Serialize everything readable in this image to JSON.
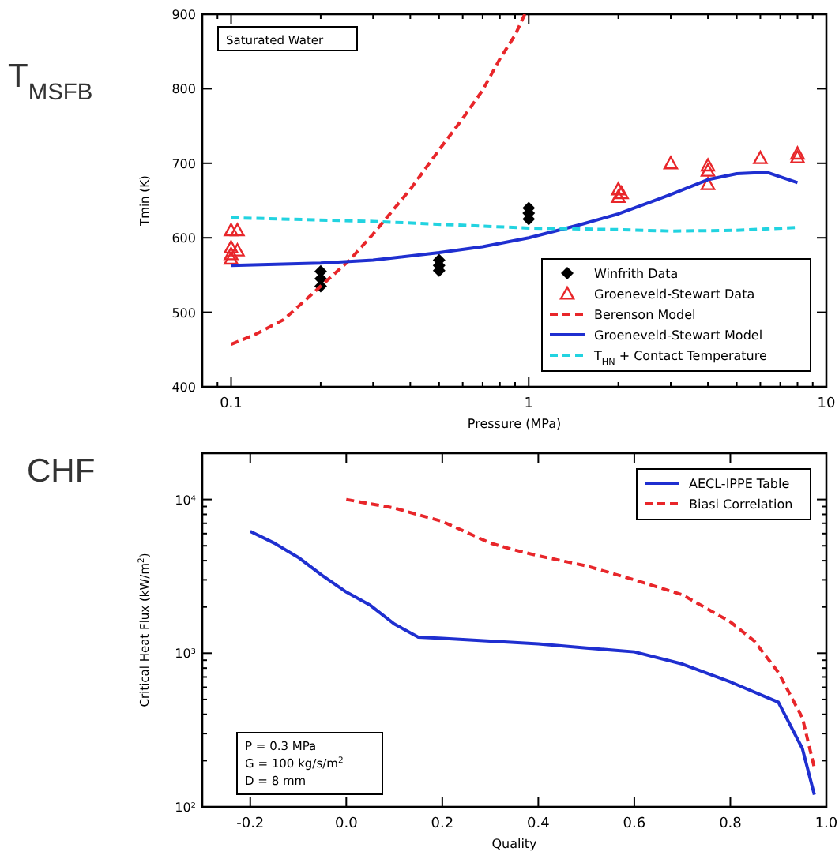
{
  "chart_data": [
    {
      "type": "line",
      "title": "T$_{MSFB}$",
      "xlabel": "Pressure (MPa)",
      "ylabel": "Tmin (K)",
      "log": "x",
      "legend": "bottom right",
      "grid": false,
      "xlim": [
        0.08,
        10
      ],
      "ylim": [
        400,
        900
      ],
      "xticks": [
        {
          "value": 0.08,
          "label": null
        },
        {
          "value": 0.09,
          "label": null
        },
        0.1,
        {
          "value": 0.2,
          "label": null
        },
        {
          "value": 0.3,
          "label": null
        },
        {
          "value": 0.4,
          "label": null
        },
        {
          "value": 0.5,
          "label": null
        },
        {
          "value": 0.6,
          "label": null
        },
        {
          "value": 0.7,
          "label": null
        },
        {
          "value": 0.8,
          "label": null
        },
        {
          "value": 0.9,
          "label": null
        },
        1,
        {
          "value": 2,
          "label": null
        },
        {
          "value": 3,
          "label": null
        },
        {
          "value": 4,
          "label": null
        },
        {
          "value": 5,
          "label": null
        },
        {
          "value": 6,
          "label": null
        },
        {
          "value": 7,
          "label": null
        },
        {
          "value": 8,
          "label": null
        },
        {
          "value": 9,
          "label": null
        },
        10
      ],
      "yticks": [
        400,
        500,
        600,
        700,
        800,
        900
      ],
      "annotations": [
        "Saturated Water"
      ],
      "series": [
        {
          "name": "Winfrith Data",
          "type": "scatter",
          "marker": "diamond",
          "color": "#000000",
          "x": [
            0.2,
            0.2,
            0.2,
            0.5,
            0.5,
            0.5,
            1,
            1,
            1
          ],
          "values": [
            555,
            545,
            535,
            570,
            563,
            556,
            640,
            633,
            625
          ]
        },
        {
          "name": "Groeneveld-Stewart Data",
          "type": "scatter",
          "marker": "triangle",
          "color": "#e8262a",
          "x": [
            0.1,
            0.105,
            0.1,
            0.105,
            0.1,
            0.1,
            2,
            2.05,
            2,
            3,
            4,
            4,
            4,
            6,
            8,
            8
          ],
          "values": [
            610,
            610,
            587,
            583,
            578,
            572,
            665,
            660,
            655,
            700,
            697,
            690,
            672,
            707,
            713,
            708
          ]
        },
        {
          "name": "Berenson Model",
          "type": "line",
          "line_style": "dashed",
          "color": "#e8262a",
          "x": [
            0.1,
            0.12,
            0.15,
            0.2,
            0.25,
            0.3,
            0.4,
            0.5,
            0.6,
            0.7,
            0.8,
            0.9,
            0.97
          ],
          "values": [
            457,
            470,
            490,
            535,
            570,
            605,
            665,
            718,
            760,
            798,
            840,
            872,
            900
          ]
        },
        {
          "name": "Groeneveld-Stewart Model",
          "type": "line",
          "line_style": "solid",
          "color": "#1f2fd0",
          "x": [
            0.1,
            0.2,
            0.3,
            0.5,
            0.7,
            1,
            1.5,
            2,
            3,
            4,
            5,
            6.3,
            8
          ],
          "values": [
            563,
            566,
            570,
            580,
            588,
            600,
            618,
            632,
            658,
            678,
            686,
            688,
            674
          ]
        },
        {
          "name": "T$_{HN}$ + Contact Temperature",
          "type": "line",
          "line_style": "dashed",
          "color": "#22d3e0",
          "x": [
            0.1,
            0.3,
            1,
            2,
            3,
            5,
            8
          ],
          "values": [
            627,
            622,
            613,
            611,
            609,
            610,
            614
          ]
        }
      ]
    },
    {
      "type": "line",
      "title": "CHF",
      "xlabel": "Quality",
      "ylabel": "Critical Heat Flux (kW/m$^{2}$)",
      "log": "y",
      "legend": "top right",
      "grid": false,
      "xlim": [
        -0.3,
        1.0
      ],
      "ylim": [
        100,
        20000
      ],
      "xticks": [
        -0.2,
        {
          "value": 0,
          "label": "0.0"
        },
        0.2,
        0.4,
        0.6,
        0.8,
        {
          "value": 1,
          "label": "1.0"
        }
      ],
      "yticks": [
        {
          "value": 100,
          "label": "10²"
        },
        {
          "value": 200,
          "label": null
        },
        {
          "value": 300,
          "label": null
        },
        {
          "value": 400,
          "label": null
        },
        {
          "value": 500,
          "label": null
        },
        {
          "value": 600,
          "label": null
        },
        {
          "value": 700,
          "label": null
        },
        {
          "value": 800,
          "label": null
        },
        {
          "value": 900,
          "label": null
        },
        {
          "value": 1000,
          "label": "10³"
        },
        {
          "value": 2000,
          "label": null
        },
        {
          "value": 3000,
          "label": null
        },
        {
          "value": 4000,
          "label": null
        },
        {
          "value": 5000,
          "label": null
        },
        {
          "value": 6000,
          "label": null
        },
        {
          "value": 7000,
          "label": null
        },
        {
          "value": 8000,
          "label": null
        },
        {
          "value": 9000,
          "label": null
        },
        {
          "value": 10000,
          "label": "10⁴"
        },
        {
          "value": 20000,
          "label": null
        }
      ],
      "annotations": [
        "P = 0.3 MPa",
        "G = 100 kg/s/m$^{2}$",
        "D = 8 mm"
      ],
      "series": [
        {
          "name": "AECL-IPPE Table",
          "type": "line",
          "line_style": "solid",
          "color": "#1f2fd0",
          "x": [
            -0.2,
            -0.15,
            -0.1,
            -0.05,
            0,
            0.05,
            0.1,
            0.15,
            0.2,
            0.3,
            0.4,
            0.5,
            0.6,
            0.7,
            0.8,
            0.9,
            0.95,
            0.975
          ],
          "values": [
            6200,
            5200,
            4200,
            3200,
            2500,
            2050,
            1550,
            1270,
            1250,
            1200,
            1150,
            1080,
            1020,
            850,
            650,
            480,
            240,
            120
          ]
        },
        {
          "name": "Biasi Correlation",
          "type": "line",
          "line_style": "dashed",
          "color": "#e8262a",
          "x": [
            0,
            0.1,
            0.2,
            0.3,
            0.35,
            0.4,
            0.5,
            0.6,
            0.7,
            0.8,
            0.85,
            0.9,
            0.95,
            0.975
          ],
          "values": [
            10000,
            8800,
            7200,
            5200,
            4700,
            4300,
            3700,
            3000,
            2400,
            1600,
            1200,
            750,
            380,
            180
          ]
        }
      ]
    }
  ]
}
